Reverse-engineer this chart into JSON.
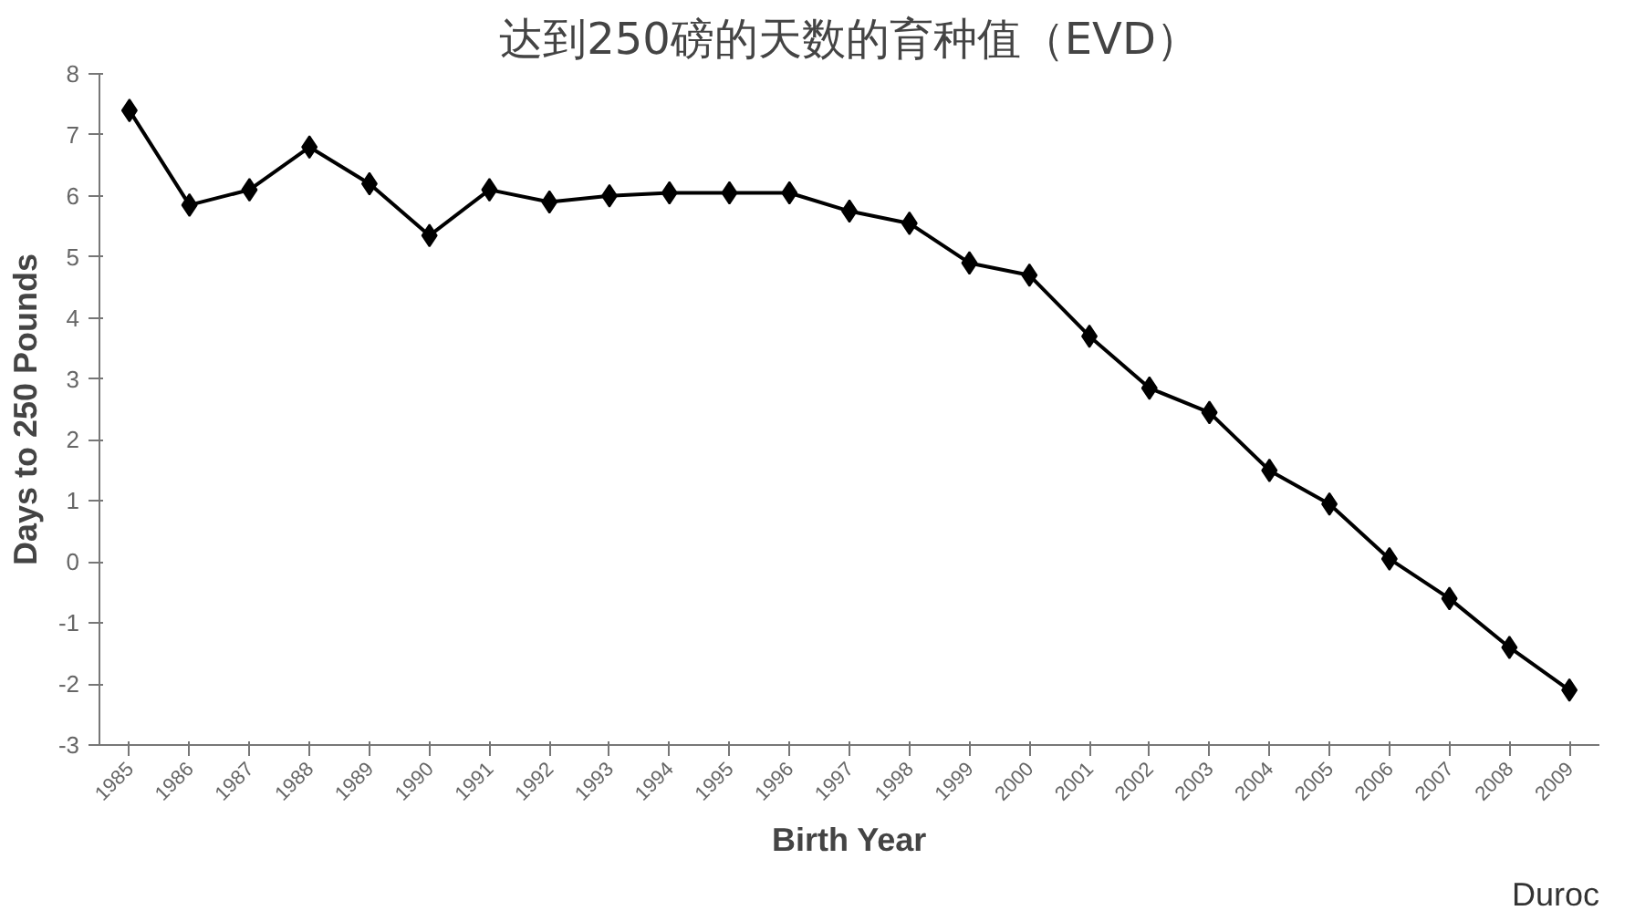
{
  "chart_data": {
    "type": "line",
    "title": "达到250磅的天数的育种值（EVD）",
    "xlabel": "Birth Year",
    "ylabel": "Days to 250 Pounds",
    "categories": [
      "1985",
      "1986",
      "1987",
      "1988",
      "1989",
      "1990",
      "1991",
      "1992",
      "1993",
      "1994",
      "1995",
      "1996",
      "1997",
      "1998",
      "1999",
      "2000",
      "2001",
      "2002",
      "2003",
      "2004",
      "2005",
      "2006",
      "2007",
      "2008",
      "2009"
    ],
    "series": [
      {
        "color": "#000000",
        "values": [
          7.4,
          5.85,
          6.1,
          6.8,
          6.2,
          5.35,
          6.1,
          5.9,
          6.0,
          6.05,
          6.05,
          6.05,
          5.75,
          5.55,
          4.9,
          4.7,
          3.7,
          2.85,
          2.45,
          1.5,
          0.95,
          0.05,
          -0.6,
          -1.4,
          -2.1
        ]
      }
    ],
    "ylim": [
      -3,
      8
    ],
    "yticks": [
      -3,
      -2,
      -1,
      0,
      1,
      2,
      3,
      4,
      5,
      6,
      7,
      8
    ],
    "marker": "diamond",
    "line_style": "solid",
    "grid": false,
    "annotations": [
      "Duroc"
    ]
  }
}
